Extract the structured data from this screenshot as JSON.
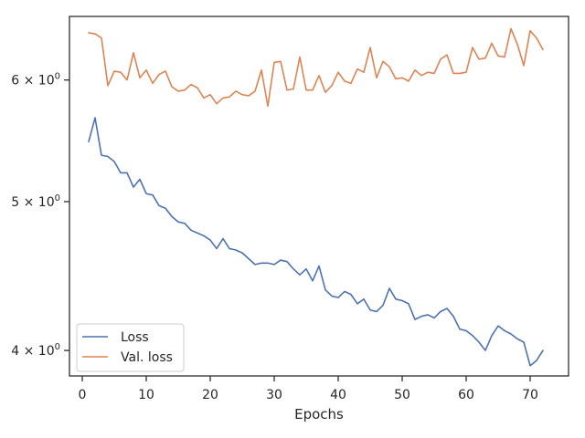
{
  "chart_data": {
    "type": "line",
    "xlabel": "Epochs",
    "ylabel": "",
    "yscale": "log",
    "xlim": [
      -2,
      76
    ],
    "ylim": [
      3.85,
      6.6
    ],
    "xticks": [
      0,
      10,
      20,
      30,
      40,
      50,
      60,
      70
    ],
    "yticks": [
      {
        "value": 4,
        "label": "4 × 10^0"
      },
      {
        "value": 5,
        "label": "5 × 10^0"
      },
      {
        "value": 6,
        "label": "6 × 10^0"
      }
    ],
    "grid": false,
    "legend_position": "lower-left",
    "x": [
      1,
      2,
      3,
      4,
      5,
      6,
      7,
      8,
      9,
      10,
      11,
      12,
      13,
      14,
      15,
      16,
      17,
      18,
      19,
      20,
      21,
      22,
      23,
      24,
      25,
      26,
      27,
      28,
      29,
      30,
      31,
      32,
      33,
      34,
      35,
      36,
      37,
      38,
      39,
      40,
      41,
      42,
      43,
      44,
      45,
      46,
      47,
      48,
      49,
      50,
      51,
      52,
      53,
      54,
      55,
      56,
      57,
      58,
      59,
      60,
      61,
      62,
      63,
      64,
      65,
      66,
      67,
      68,
      69,
      70,
      71,
      72
    ],
    "series": [
      {
        "name": "Loss",
        "color": "#4c72b0",
        "values": [
          5.47,
          5.67,
          5.36,
          5.35,
          5.31,
          5.22,
          5.22,
          5.11,
          5.17,
          5.06,
          5.05,
          4.97,
          4.95,
          4.89,
          4.85,
          4.84,
          4.79,
          4.77,
          4.75,
          4.72,
          4.66,
          4.73,
          4.66,
          4.65,
          4.63,
          4.59,
          4.55,
          4.56,
          4.56,
          4.55,
          4.58,
          4.57,
          4.52,
          4.48,
          4.52,
          4.44,
          4.54,
          4.38,
          4.34,
          4.33,
          4.37,
          4.35,
          4.29,
          4.32,
          4.25,
          4.24,
          4.28,
          4.39,
          4.32,
          4.31,
          4.29,
          4.19,
          4.21,
          4.22,
          4.2,
          4.24,
          4.26,
          4.21,
          4.13,
          4.12,
          4.09,
          4.05,
          4.0,
          4.09,
          4.15,
          4.12,
          4.1,
          4.07,
          4.05,
          3.91,
          3.94,
          4.0
        ]
      },
      {
        "name": "Val. loss",
        "color": "#dd8452",
        "values": [
          6.44,
          6.43,
          6.39,
          5.95,
          6.08,
          6.07,
          6.0,
          6.25,
          6.02,
          6.09,
          5.97,
          6.05,
          6.08,
          5.94,
          5.9,
          5.91,
          5.96,
          5.93,
          5.84,
          5.87,
          5.79,
          5.84,
          5.85,
          5.9,
          5.87,
          5.86,
          5.9,
          6.09,
          5.77,
          6.16,
          6.17,
          5.91,
          5.92,
          6.21,
          5.91,
          5.91,
          6.04,
          5.89,
          5.95,
          6.07,
          5.99,
          5.97,
          6.1,
          6.07,
          6.3,
          6.02,
          6.17,
          6.12,
          6.01,
          6.02,
          5.99,
          6.09,
          6.04,
          6.07,
          6.06,
          6.19,
          6.23,
          6.06,
          6.06,
          6.07,
          6.3,
          6.19,
          6.2,
          6.34,
          6.22,
          6.21,
          6.48,
          6.33,
          6.13,
          6.46,
          6.39,
          6.28
        ]
      }
    ]
  }
}
